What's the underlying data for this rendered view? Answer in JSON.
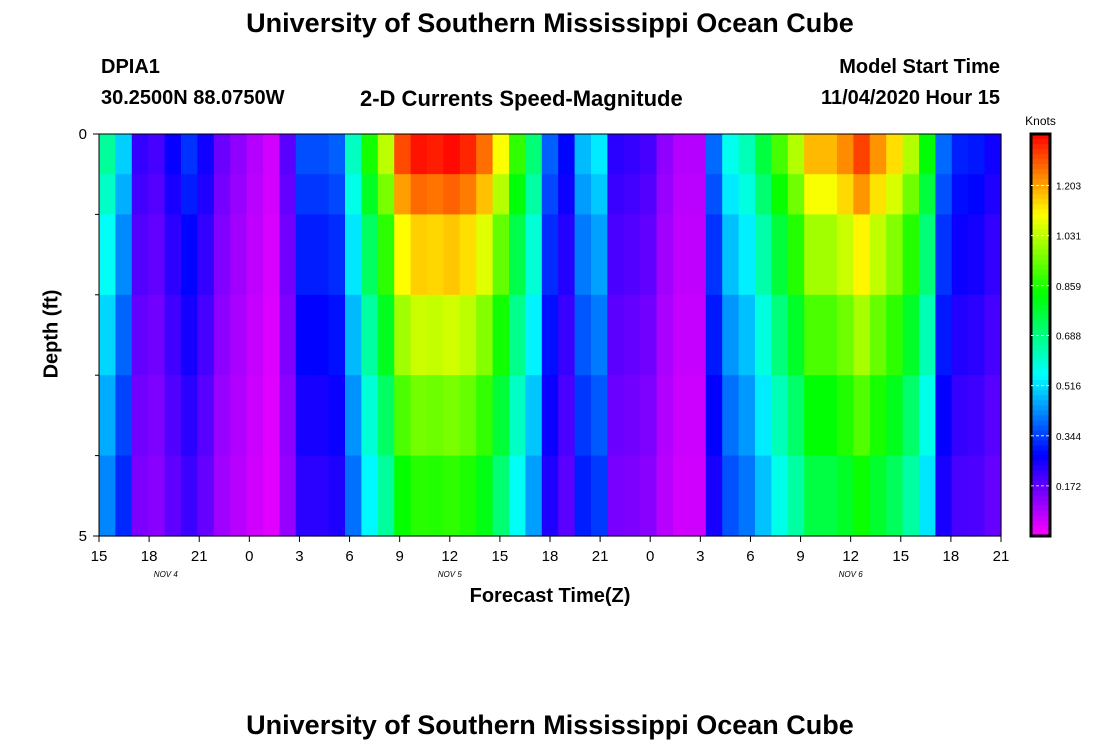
{
  "header": {
    "title_top": "University of Southern Mississippi Ocean Cube",
    "title_bottom": "University of Southern Mississippi Ocean Cube",
    "station_id": "DPIA1",
    "station_coords": "30.2500N 88.0750W",
    "plot_title": "2-D Currents Speed-Magnitude",
    "model_label": "Model Start Time",
    "model_time": "11/04/2020 Hour 15"
  },
  "chart_data": {
    "type": "heatmap",
    "title": "2-D Currents Speed-Magnitude",
    "xlabel": "Forecast Time(Z)",
    "ylabel": "Depth (ft)",
    "colorbar_label": "Knots",
    "colorbar_ticks": [
      0.172,
      0.344,
      0.516,
      0.688,
      0.859,
      1.031,
      1.203
    ],
    "value_range": [
      0.0,
      1.38
    ],
    "ylim": [
      0,
      5
    ],
    "y_tick_labels": [
      "0",
      "5"
    ],
    "y_minor_ticks": [
      1,
      2,
      3,
      4
    ],
    "x_tick_labels": [
      "15",
      "18",
      "21",
      "0",
      "3",
      "6",
      "9",
      "12",
      "15",
      "18",
      "21",
      "0",
      "3",
      "6",
      "9",
      "12",
      "15",
      "18",
      "21"
    ],
    "date_labels": [
      {
        "label": "NOV  4",
        "hour_index": 4
      },
      {
        "label": "NOV  5",
        "hour_index": 21
      },
      {
        "label": "NOV  6",
        "hour_index": 45
      }
    ],
    "x_hours": [
      15,
      16,
      17,
      18,
      19,
      20,
      21,
      22,
      23,
      0,
      1,
      2,
      3,
      4,
      5,
      6,
      7,
      8,
      9,
      10,
      11,
      12,
      13,
      14,
      15,
      16,
      17,
      18,
      19,
      20,
      21,
      22,
      23,
      0,
      1,
      2,
      3,
      4,
      5,
      6,
      7,
      8,
      9,
      10,
      11,
      12,
      13,
      14,
      15,
      16,
      17,
      18,
      19,
      20,
      21
    ],
    "depth_layers_ft": [
      0.25,
      0.75,
      1.5,
      2.5,
      3.5,
      4.5
    ],
    "surface_speeds": [
      0.66,
      0.5,
      0.22,
      0.2,
      0.27,
      0.33,
      0.26,
      0.16,
      0.12,
      0.08,
      0.05,
      0.18,
      0.36,
      0.36,
      0.38,
      0.62,
      0.85,
      1.03,
      1.3,
      1.36,
      1.35,
      1.37,
      1.34,
      1.26,
      1.1,
      0.88,
      0.7,
      0.38,
      0.28,
      0.48,
      0.53,
      0.23,
      0.22,
      0.2,
      0.12,
      0.08,
      0.08,
      0.39,
      0.57,
      0.63,
      0.76,
      0.9,
      1.02,
      1.18,
      1.18,
      1.23,
      1.31,
      1.22,
      1.14,
      1.02,
      0.82,
      0.39,
      0.31,
      0.3,
      0.26
    ],
    "depth_factors": [
      1.0,
      0.93,
      0.85,
      0.77,
      0.7,
      0.64
    ]
  }
}
